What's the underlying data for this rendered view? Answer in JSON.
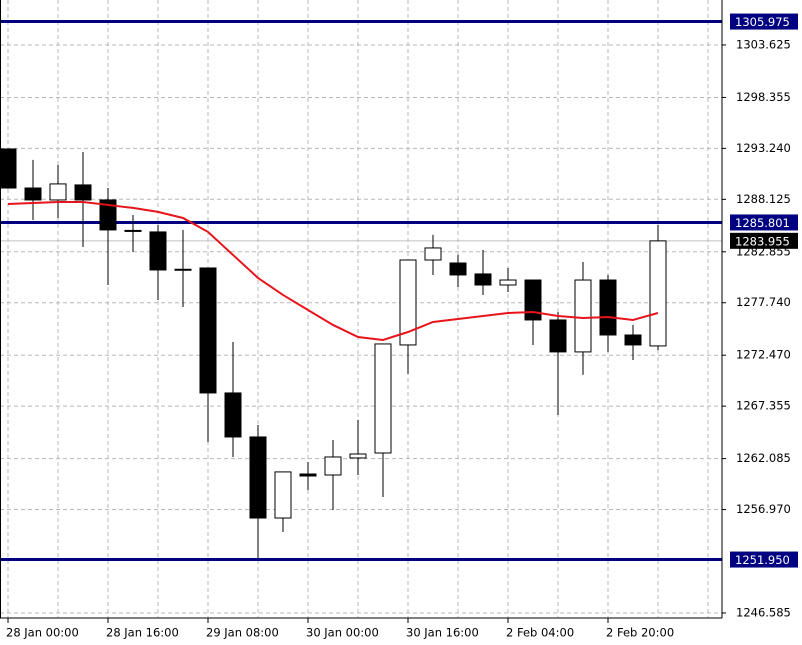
{
  "chart_data": {
    "type": "candlestick",
    "categories": [
      "28 Jan 00:00",
      null,
      null,
      null,
      "28 Jan 16:00",
      null,
      null,
      null,
      "29 Jan 08:00",
      null,
      null,
      null,
      "30 Jan 00:00",
      null,
      null,
      null,
      "30 Jan 16:00",
      null,
      null,
      null,
      "2 Feb 04:00",
      null,
      null,
      null,
      "2 Feb 20:00",
      null,
      null
    ],
    "open": [
      1293.18,
      1289.26,
      1288.06,
      1289.57,
      1288.06,
      1285.0,
      1284.85,
      1281.1,
      1281.23,
      1268.68,
      1264.26,
      1256.12,
      1260.54,
      1260.44,
      1262.15,
      1262.65,
      1273.5,
      1282.03,
      1281.73,
      1280.63,
      1279.52,
      1280.02,
      1276.01,
      1272.8,
      1280.02,
      1274.5,
      1273.4
    ],
    "high": [
      1293.2,
      1292.08,
      1291.57,
      1292.88,
      1289.26,
      1286.55,
      1285.55,
      1285.05,
      1281.23,
      1273.8,
      1265.46,
      1260.75,
      1261.75,
      1263.96,
      1265.97,
      1273.6,
      1282.03,
      1284.55,
      1282.54,
      1283.04,
      1281.23,
      1280.02,
      1276.81,
      1281.83,
      1280.53,
      1275.51,
      1285.55
    ],
    "low": [
      1289.2,
      1286.05,
      1286.25,
      1283.34,
      1279.52,
      1282.84,
      1278.02,
      1277.31,
      1263.76,
      1262.25,
      1252.11,
      1254.72,
      1258.94,
      1256.93,
      1260.44,
      1258.23,
      1270.59,
      1280.53,
      1279.32,
      1278.52,
      1278.82,
      1273.5,
      1266.47,
      1270.49,
      1272.8,
      1271.99,
      1272.99
    ],
    "close": [
      1289.26,
      1288.06,
      1289.67,
      1288.06,
      1285.05,
      1284.95,
      1281.03,
      1281.03,
      1268.68,
      1264.26,
      1256.12,
      1260.75,
      1260.34,
      1262.25,
      1262.55,
      1273.6,
      1282.03,
      1283.24,
      1280.53,
      1279.52,
      1280.02,
      1276.01,
      1272.8,
      1280.02,
      1274.5,
      1273.5,
      1283.95
    ],
    "moving_average": {
      "color": "#e8141b",
      "values": [
        1287.66,
        1287.76,
        1287.86,
        1287.86,
        1287.56,
        1287.26,
        1286.86,
        1286.25,
        1284.85,
        1282.54,
        1280.23,
        1278.52,
        1277.01,
        1275.51,
        1274.3,
        1274.0,
        1274.8,
        1275.81,
        1276.11,
        1276.41,
        1276.71,
        1276.81,
        1276.41,
        1276.21,
        1276.31,
        1276.01,
        1276.71
      ]
    },
    "levels": [
      {
        "value": 1305.975,
        "label": "1305.975"
      },
      {
        "value": 1285.801,
        "label": "1285.801"
      },
      {
        "value": 1251.95,
        "label": "1251.950"
      }
    ],
    "level_color": "#000080",
    "bid": {
      "value": 1283.955,
      "label": "1283.955"
    },
    "ylim": [
      1246.08,
      1308.14
    ],
    "yticks": [
      {
        "value": 1246.585,
        "label": "1246.585"
      },
      {
        "value": 1256.97,
        "label": "1256.970"
      },
      1262.085,
      1267.355,
      {
        "value": 1272.47,
        "label": "1272.470"
      },
      {
        "value": 1277.74,
        "label": "1277.740"
      },
      1282.855,
      1288.125,
      {
        "value": 1293.24,
        "label": "1293.240"
      },
      1298.355,
      1303.625
    ],
    "grid": true
  }
}
